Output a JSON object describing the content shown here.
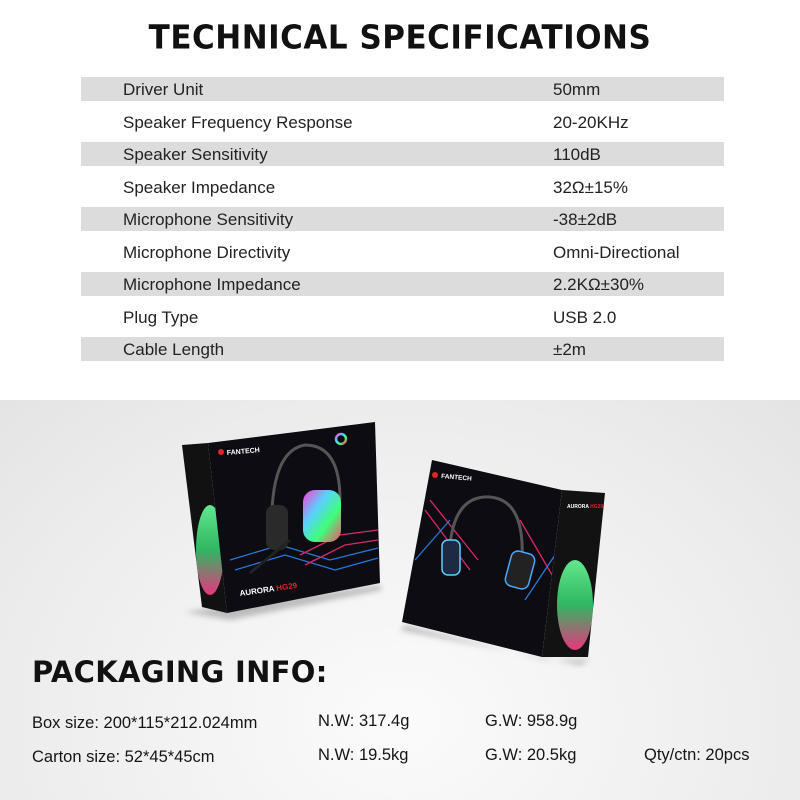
{
  "title": "TECHNICAL SPECIFICATIONS",
  "specs": [
    {
      "label": "Driver Unit",
      "value": "50mm"
    },
    {
      "label": "Speaker Frequency Response",
      "value": "20-20KHz"
    },
    {
      "label": "Speaker Sensitivity",
      "value": "110dB"
    },
    {
      "label": "Speaker Impedance",
      "value": "32Ω±15%"
    },
    {
      "label": "Microphone Sensitivity",
      "value": "-38±2dB"
    },
    {
      "label": "Microphone Directivity",
      "value": "Omni-Directional"
    },
    {
      "label": "Microphone Impedance",
      "value": "2.2KΩ±30%"
    },
    {
      "label": "Plug Type",
      "value": "USB 2.0"
    },
    {
      "label": "Cable Length",
      "value": "±2m"
    }
  ],
  "product_image": {
    "brand": "FANTECH",
    "model": "AURORA HG29",
    "badge": "RGB"
  },
  "packaging": {
    "title": "PACKAGING INFO:",
    "box": {
      "size": "Box size: 200*115*212.024mm",
      "nw": "N.W: 317.4g",
      "gw": "G.W: 958.9g"
    },
    "carton": {
      "size": "Carton size: 52*45*45cm",
      "nw": "N.W: 19.5kg",
      "gw": "G.W: 20.5kg",
      "qty": "Qty/ctn: 20pcs"
    }
  },
  "colors": {
    "row_shade": "#dcdcdc",
    "accent_red": "#e0242a",
    "neon_pink": "#ff2d7a",
    "neon_blue": "#2d8cff"
  }
}
